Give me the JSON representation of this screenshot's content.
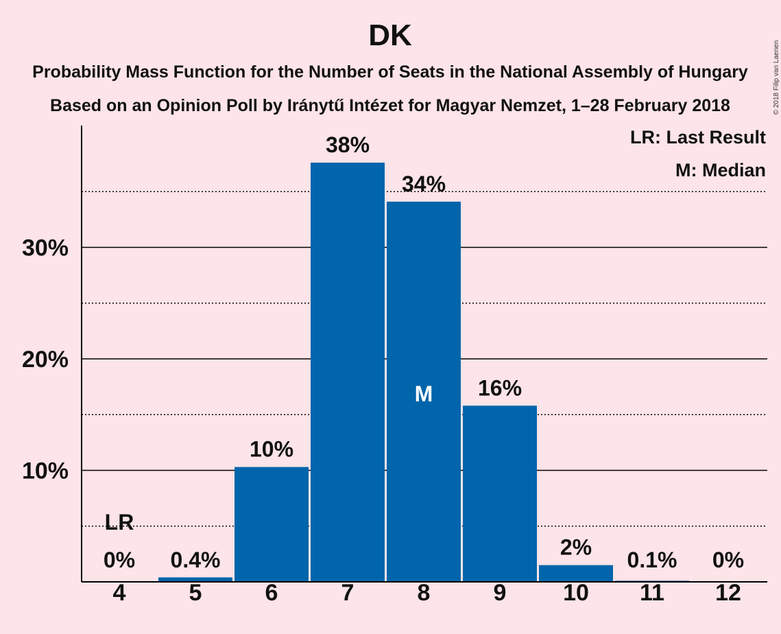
{
  "chart_data": {
    "type": "bar",
    "title": "DK",
    "subtitle_line1": "Probability Mass Function for the Number of Seats in the National Assembly of Hungary",
    "subtitle_line2": "Based on an Opinion Poll by Iránytű Intézet for Magyar Nemzet, 1–28 February 2018",
    "copyright": "© 2018 Filip van Laenen",
    "categories": [
      "4",
      "5",
      "6",
      "7",
      "8",
      "9",
      "10",
      "11",
      "12"
    ],
    "values": [
      0,
      0.4,
      10.3,
      37.6,
      34.1,
      15.8,
      1.5,
      0.1,
      0
    ],
    "value_labels": [
      "0%",
      "0.4%",
      "10%",
      "38%",
      "34%",
      "16%",
      "2%",
      "0.1%",
      "0%"
    ],
    "ylim": [
      0,
      41
    ],
    "yticks": [
      10,
      20,
      30
    ],
    "ytick_labels": [
      "10%",
      "20%",
      "30%"
    ],
    "minor_gridlines": [
      5,
      15,
      25,
      35
    ],
    "last_result_category": "4",
    "last_result_marker": "LR",
    "median_category": "8",
    "median_marker": "M",
    "legend": [
      "LR: Last Result",
      "M: Median"
    ],
    "bar_color": "#0065AB",
    "background_color": "#FCE4E8"
  }
}
